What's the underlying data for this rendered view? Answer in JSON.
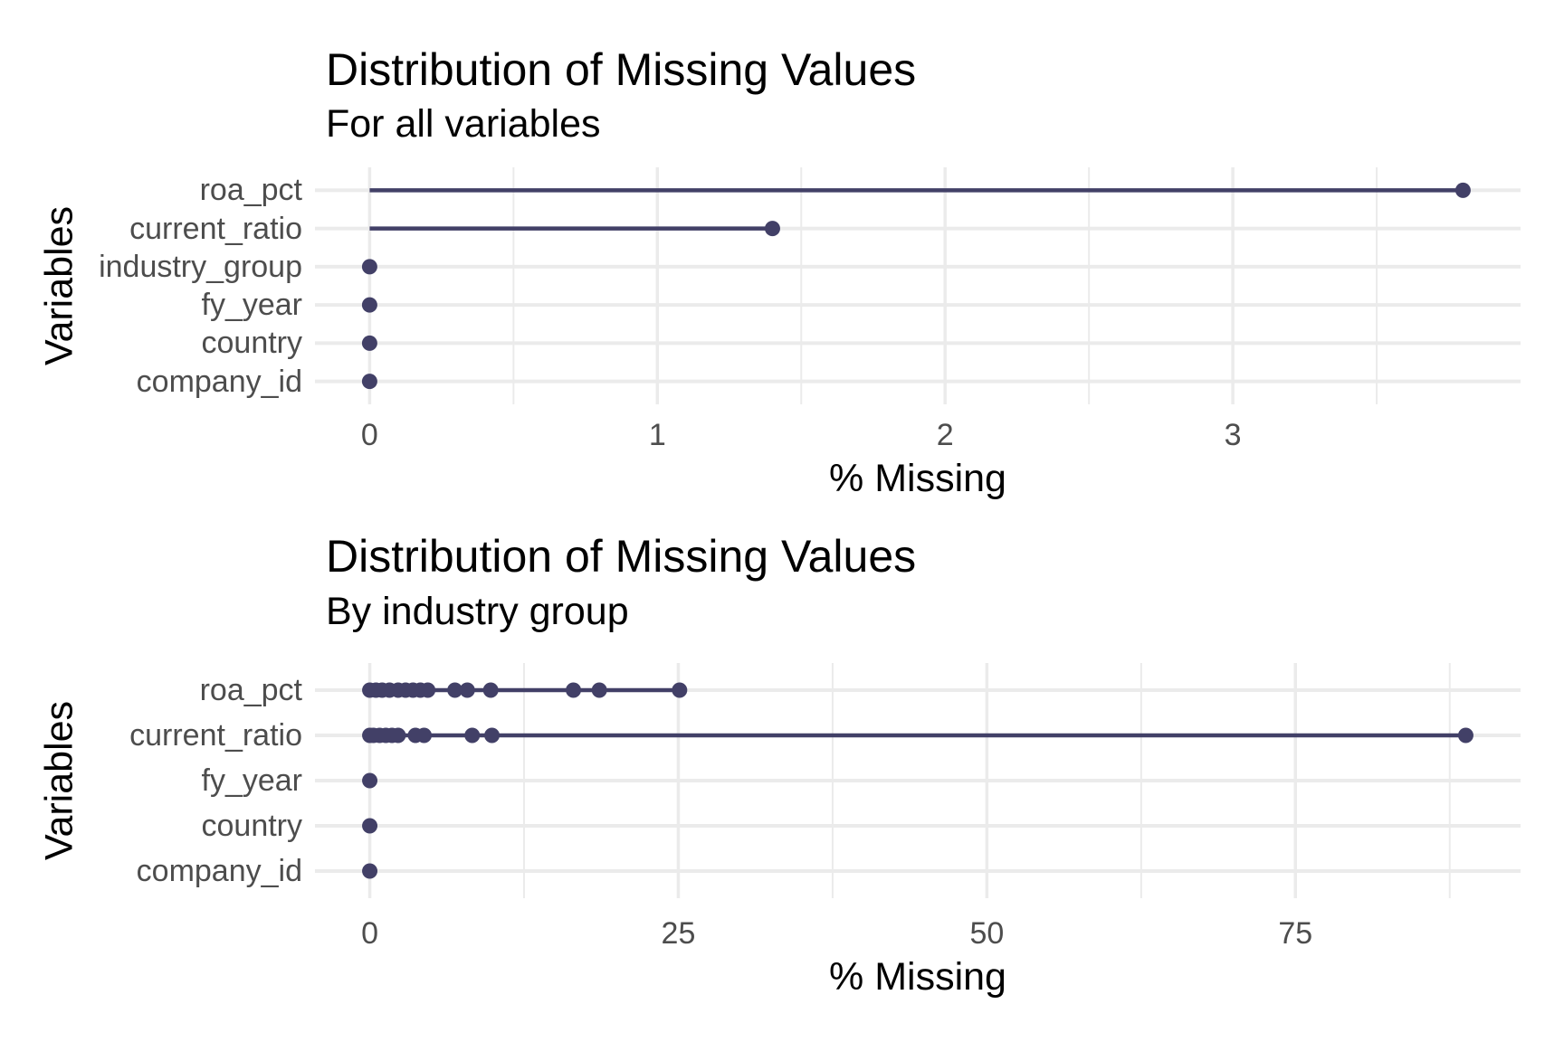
{
  "page": {
    "background": "#FFFFFF"
  },
  "colors": {
    "accent": "#424067",
    "grid": "#EBEBEB",
    "axis_text": "#4D4D4D",
    "title_text": "#000000"
  },
  "chart_data": [
    {
      "type": "lollipop",
      "title": "Distribution of Missing Values",
      "subtitle": "For all variables",
      "xlabel": "% Missing",
      "ylabel": "Variables",
      "x_ticks": [
        0,
        1,
        2,
        3
      ],
      "xlim": [
        -0.19,
        4.0
      ],
      "grid": "major+minor",
      "legend": "none",
      "rows": [
        {
          "label": "roa_pct",
          "values": [
            3.8
          ]
        },
        {
          "label": "current_ratio",
          "values": [
            1.4
          ]
        },
        {
          "label": "industry_group",
          "values": [
            0
          ]
        },
        {
          "label": "fy_year",
          "values": [
            0
          ]
        },
        {
          "label": "country",
          "values": [
            0
          ]
        },
        {
          "label": "company_id",
          "values": [
            0
          ]
        }
      ]
    },
    {
      "type": "lollipop",
      "title": "Distribution of Missing Values",
      "subtitle": "By industry group",
      "xlabel": "% Missing",
      "ylabel": "Variables",
      "x_ticks": [
        0,
        25,
        50,
        75
      ],
      "xlim": [
        -4.44,
        93.24
      ],
      "grid": "major+minor",
      "legend": "none",
      "rows": [
        {
          "label": "roa_pct",
          "values": [
            0,
            0.5,
            1.0,
            1.6,
            2.3,
            2.9,
            3.5,
            4.1,
            4.7,
            6.9,
            7.9,
            9.8,
            16.5,
            18.6,
            25.1
          ]
        },
        {
          "label": "current_ratio",
          "values": [
            0,
            0.3,
            0.8,
            1.3,
            1.8,
            2.3,
            3.7,
            4.4,
            8.3,
            9.9,
            88.8
          ]
        },
        {
          "label": "fy_year",
          "values": [
            0
          ]
        },
        {
          "label": "country",
          "values": [
            0
          ]
        },
        {
          "label": "company_id",
          "values": [
            0
          ]
        }
      ]
    }
  ]
}
